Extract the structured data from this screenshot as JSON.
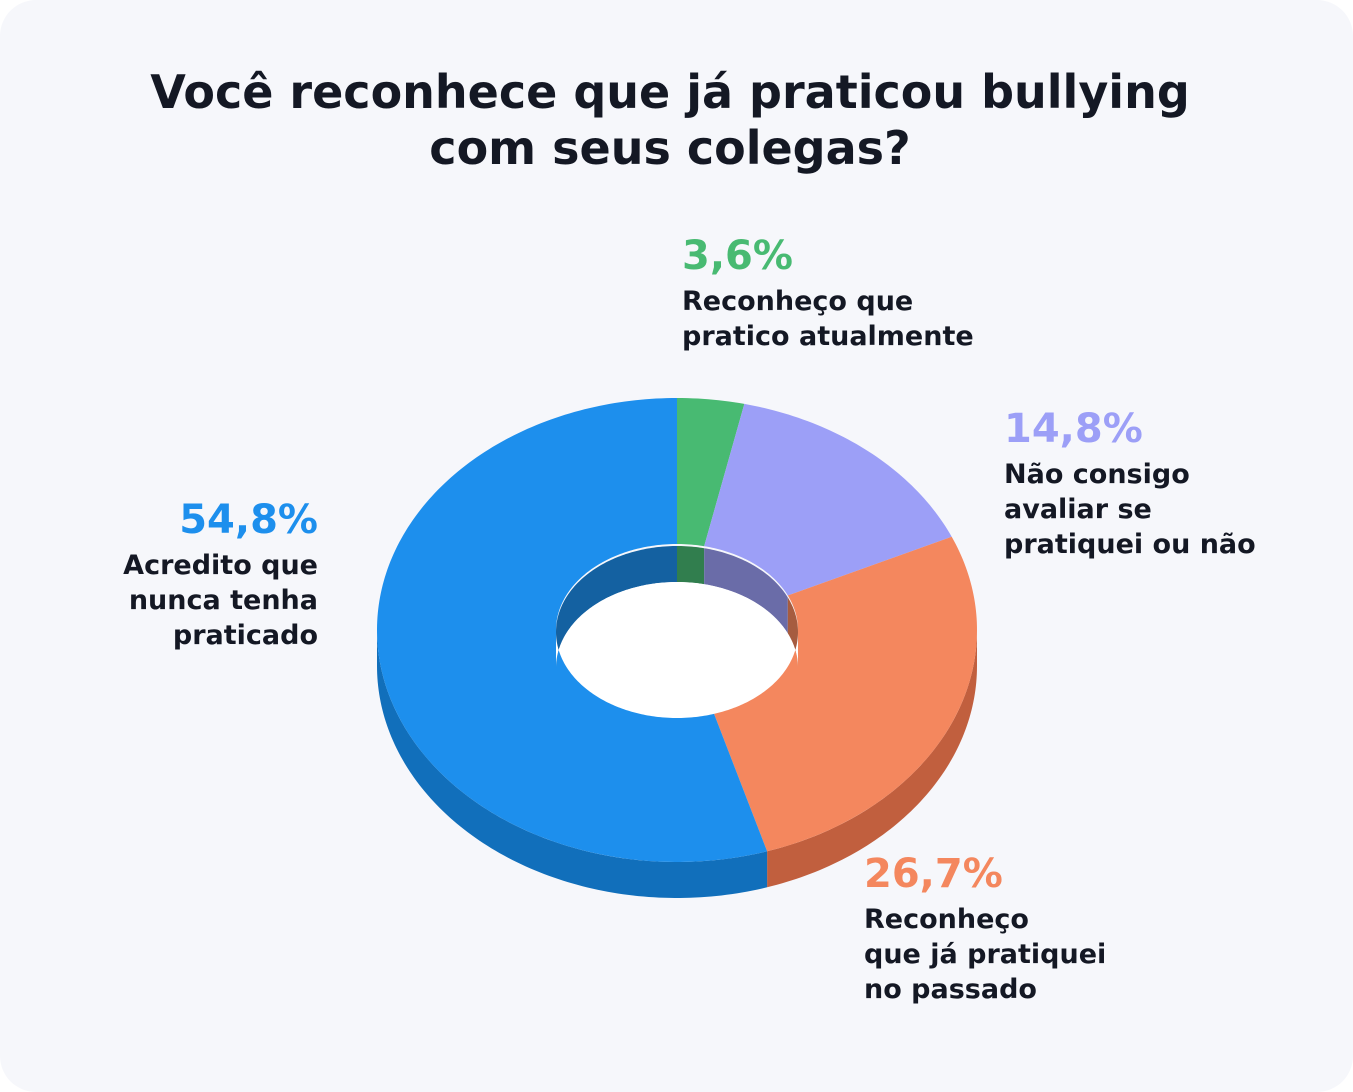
{
  "title_lines": [
    "Você reconhece que já praticou bullying",
    "com seus colegas?"
  ],
  "chart_data": {
    "type": "pie",
    "variant": "3d-donut",
    "title": "Você reconhece que já praticou bullying com seus colegas?",
    "unit": "%",
    "series": [
      {
        "name": "Reconheço que pratico atualmente",
        "value": 3.6,
        "value_label": "3,6%",
        "label_lines": [
          "Reconheço que",
          "pratico atualmente"
        ],
        "color": "#48ba72",
        "side_color": "#2f8c50"
      },
      {
        "name": "Não consigo avaliar se pratiquei ou não",
        "value": 14.8,
        "value_label": "14,8%",
        "label_lines": [
          "Não consigo",
          "avaliar se",
          "pratiquei ou não"
        ],
        "color": "#9c9ff7",
        "side_color": "#7679c6"
      },
      {
        "name": "Reconheço que já pratiquei no passado",
        "value": 26.7,
        "value_label": "26,7%",
        "label_lines": [
          "Reconheço",
          "que já pratiquei",
          "no passado"
        ],
        "color": "#f4875e",
        "side_color": "#c15f3e"
      },
      {
        "name": "Acredito que nunca tenha praticado",
        "value": 54.8,
        "value_label": "54,8%",
        "label_lines": [
          "Acredito que",
          "nunca tenha",
          "praticado"
        ],
        "color": "#1d8fed",
        "side_color": "#116fbb"
      }
    ],
    "legend": "none"
  }
}
